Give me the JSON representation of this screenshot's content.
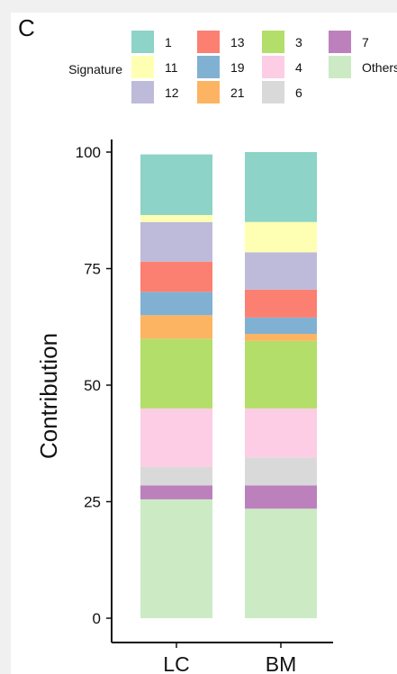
{
  "panel_label": "C",
  "chart_data": {
    "type": "bar",
    "stacked": true,
    "ylabel": "Contribution",
    "ylim": [
      0,
      100
    ],
    "yticks": [
      0,
      25,
      50,
      75,
      100
    ],
    "categories": [
      "LC",
      "BM"
    ],
    "legend": {
      "title": "Signature",
      "placement": "top"
    },
    "series": [
      {
        "name": "Others",
        "color": "#ccebc5",
        "values": [
          25.5,
          23.5
        ]
      },
      {
        "name": "7",
        "color": "#bc80bd",
        "values": [
          3.0,
          5.0
        ]
      },
      {
        "name": "6",
        "color": "#d9d9d9",
        "values": [
          4.0,
          6.0
        ]
      },
      {
        "name": "4",
        "color": "#fccde5",
        "values": [
          12.5,
          10.5
        ]
      },
      {
        "name": "3",
        "color": "#b3de69",
        "values": [
          15.0,
          14.5
        ]
      },
      {
        "name": "21",
        "color": "#fdb462",
        "values": [
          5.0,
          1.5
        ]
      },
      {
        "name": "19",
        "color": "#80b1d3",
        "values": [
          5.0,
          3.5
        ]
      },
      {
        "name": "13",
        "color": "#fb8072",
        "values": [
          6.5,
          6.0
        ]
      },
      {
        "name": "12",
        "color": "#bebada",
        "values": [
          8.5,
          8.0
        ]
      },
      {
        "name": "11",
        "color": "#ffffb3",
        "values": [
          1.5,
          6.5
        ]
      },
      {
        "name": "1",
        "color": "#8dd3c7",
        "values": [
          13.0,
          15.0
        ]
      }
    ],
    "legend_order": [
      "1",
      "11",
      "12",
      "13",
      "19",
      "21",
      "3",
      "4",
      "6",
      "7",
      "Others"
    ]
  }
}
